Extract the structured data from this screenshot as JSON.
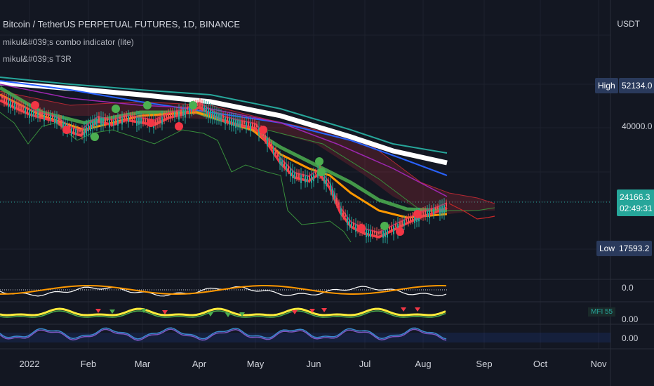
{
  "header": {
    "symbol_title": "Bitcoin / TetherUS PERPETUAL FUTURES, 1D, BINANCE",
    "indicator_1": "mikul&#039;s combo indicator (lite)",
    "indicator_2": "mikul&#039;s T3R"
  },
  "price_axis": {
    "currency": "USDT",
    "label_40000": "40000.0",
    "high_label": "High",
    "high_value": "52134.0",
    "current_price": "24166.3",
    "countdown": "02:49:31",
    "low_label": "Low",
    "low_value": "17593.2"
  },
  "panes": {
    "osc_value": "0.0",
    "mfi_label": "MFI",
    "mfi_value": "55",
    "rsi_value": "0.00",
    "last_value": "0.00"
  },
  "time_axis": [
    "2022",
    "Feb",
    "Mar",
    "Apr",
    "May",
    "Jun",
    "Jul",
    "Aug",
    "Sep",
    "Oct",
    "Nov"
  ],
  "colors": {
    "background": "#131722",
    "up": "#26a69a",
    "down": "#ef5350",
    "ma_white": "#ffffff",
    "ma_teal": "#26a69a",
    "ma_blue": "#2962ff",
    "ma_purple": "#9c27b0",
    "ma_red": "#f23645",
    "ma_orange": "#ff9800",
    "ma_yellow": "#ffeb3b",
    "ma_green": "#4caf50"
  },
  "chart_data": {
    "type": "line",
    "title": "Bitcoin / TetherUS PERPETUAL FUTURES, 1D, BINANCE",
    "xlabel": "",
    "ylabel": "USDT",
    "x": [
      "2022",
      "Feb",
      "Mar",
      "Apr",
      "May",
      "Jun",
      "Jul",
      "Aug"
    ],
    "series": [
      {
        "values": [
          47000,
          38000,
          42000,
          45000,
          38000,
          31000,
          20000,
          23000
        ]
      }
    ],
    "high": 52134.0,
    "low": 17593.2,
    "last": 24166.3
  }
}
